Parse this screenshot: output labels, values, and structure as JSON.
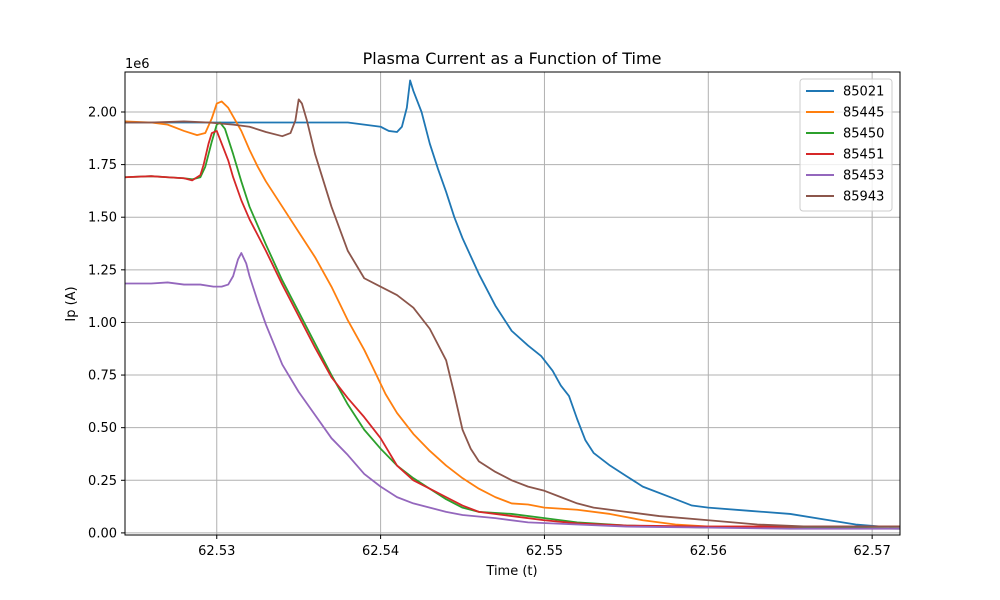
{
  "chart_data": {
    "type": "line",
    "title": "Plasma Current as a Function of Time",
    "xlabel": "Time (t)",
    "ylabel": "Ip (A)",
    "y_offset_label": "1e6",
    "xlim": [
      62.5244,
      62.5717
    ],
    "ylim": [
      -0.01,
      2.19
    ],
    "x_ticks": [
      62.53,
      62.54,
      62.55,
      62.56,
      62.57
    ],
    "x_tick_labels": [
      "62.53",
      "62.54",
      "62.55",
      "62.56",
      "62.57"
    ],
    "y_ticks": [
      0.0,
      0.25,
      0.5,
      0.75,
      1.0,
      1.25,
      1.5,
      1.75,
      2.0
    ],
    "y_tick_labels": [
      "0.00",
      "0.25",
      "0.50",
      "0.75",
      "1.00",
      "1.25",
      "1.50",
      "1.75",
      "2.00"
    ],
    "grid": true,
    "legend_position": "top-right",
    "series": [
      {
        "name": "85021",
        "color": "#1f77b4",
        "points": [
          [
            62.5244,
            1.95
          ],
          [
            62.527,
            1.95
          ],
          [
            62.53,
            1.95
          ],
          [
            62.533,
            1.95
          ],
          [
            62.536,
            1.95
          ],
          [
            62.538,
            1.95
          ],
          [
            62.54,
            1.93
          ],
          [
            62.5405,
            1.91
          ],
          [
            62.541,
            1.905
          ],
          [
            62.5413,
            1.93
          ],
          [
            62.5416,
            2.02
          ],
          [
            62.5418,
            2.15
          ],
          [
            62.542,
            2.1
          ],
          [
            62.5425,
            2.0
          ],
          [
            62.543,
            1.85
          ],
          [
            62.5435,
            1.73
          ],
          [
            62.544,
            1.62
          ],
          [
            62.5445,
            1.5
          ],
          [
            62.545,
            1.4
          ],
          [
            62.546,
            1.23
          ],
          [
            62.547,
            1.08
          ],
          [
            62.548,
            0.96
          ],
          [
            62.549,
            0.89
          ],
          [
            62.5498,
            0.84
          ],
          [
            62.5505,
            0.77
          ],
          [
            62.551,
            0.7
          ],
          [
            62.5515,
            0.65
          ],
          [
            62.552,
            0.54
          ],
          [
            62.5525,
            0.44
          ],
          [
            62.553,
            0.38
          ],
          [
            62.554,
            0.32
          ],
          [
            62.555,
            0.27
          ],
          [
            62.556,
            0.22
          ],
          [
            62.558,
            0.16
          ],
          [
            62.559,
            0.13
          ],
          [
            62.56,
            0.12
          ],
          [
            62.5625,
            0.105
          ],
          [
            62.565,
            0.09
          ],
          [
            62.567,
            0.065
          ],
          [
            62.569,
            0.04
          ],
          [
            62.5705,
            0.03
          ],
          [
            62.5717,
            0.03
          ]
        ]
      },
      {
        "name": "85445",
        "color": "#ff7f0e",
        "points": [
          [
            62.5244,
            1.955
          ],
          [
            62.526,
            1.95
          ],
          [
            62.527,
            1.94
          ],
          [
            62.528,
            1.91
          ],
          [
            62.5288,
            1.89
          ],
          [
            62.5293,
            1.9
          ],
          [
            62.5297,
            1.97
          ],
          [
            62.53,
            2.04
          ],
          [
            62.5303,
            2.05
          ],
          [
            62.5307,
            2.02
          ],
          [
            62.5315,
            1.91
          ],
          [
            62.532,
            1.82
          ],
          [
            62.5325,
            1.74
          ],
          [
            62.533,
            1.67
          ],
          [
            62.534,
            1.55
          ],
          [
            62.535,
            1.43
          ],
          [
            62.536,
            1.31
          ],
          [
            62.537,
            1.17
          ],
          [
            62.538,
            1.01
          ],
          [
            62.539,
            0.87
          ],
          [
            62.5395,
            0.79
          ],
          [
            62.5403,
            0.66
          ],
          [
            62.541,
            0.57
          ],
          [
            62.542,
            0.47
          ],
          [
            62.543,
            0.39
          ],
          [
            62.544,
            0.32
          ],
          [
            62.545,
            0.26
          ],
          [
            62.546,
            0.21
          ],
          [
            62.547,
            0.17
          ],
          [
            62.548,
            0.14
          ],
          [
            62.549,
            0.135
          ],
          [
            62.55,
            0.12
          ],
          [
            62.552,
            0.11
          ],
          [
            62.554,
            0.09
          ],
          [
            62.556,
            0.06
          ],
          [
            62.558,
            0.04
          ],
          [
            62.56,
            0.03
          ],
          [
            62.565,
            0.03
          ],
          [
            62.5717,
            0.03
          ]
        ]
      },
      {
        "name": "85450",
        "color": "#2ca02c",
        "points": [
          [
            62.5244,
            1.69
          ],
          [
            62.526,
            1.695
          ],
          [
            62.527,
            1.69
          ],
          [
            62.528,
            1.685
          ],
          [
            62.5285,
            1.68
          ],
          [
            62.529,
            1.69
          ],
          [
            62.5293,
            1.74
          ],
          [
            62.5297,
            1.86
          ],
          [
            62.53,
            1.94
          ],
          [
            62.5302,
            1.95
          ],
          [
            62.5305,
            1.92
          ],
          [
            62.531,
            1.8
          ],
          [
            62.5315,
            1.67
          ],
          [
            62.532,
            1.55
          ],
          [
            62.533,
            1.37
          ],
          [
            62.534,
            1.2
          ],
          [
            62.535,
            1.05
          ],
          [
            62.536,
            0.9
          ],
          [
            62.537,
            0.75
          ],
          [
            62.538,
            0.61
          ],
          [
            62.539,
            0.49
          ],
          [
            62.54,
            0.4
          ],
          [
            62.541,
            0.32
          ],
          [
            62.542,
            0.26
          ],
          [
            62.543,
            0.21
          ],
          [
            62.544,
            0.16
          ],
          [
            62.545,
            0.12
          ],
          [
            62.546,
            0.1
          ],
          [
            62.548,
            0.09
          ],
          [
            62.55,
            0.07
          ],
          [
            62.552,
            0.05
          ],
          [
            62.555,
            0.035
          ],
          [
            62.56,
            0.025
          ],
          [
            62.565,
            0.025
          ],
          [
            62.5717,
            0.02
          ]
        ]
      },
      {
        "name": "85451",
        "color": "#d62728",
        "points": [
          [
            62.5244,
            1.69
          ],
          [
            62.526,
            1.695
          ],
          [
            62.527,
            1.69
          ],
          [
            62.528,
            1.685
          ],
          [
            62.5285,
            1.675
          ],
          [
            62.529,
            1.7
          ],
          [
            62.5292,
            1.75
          ],
          [
            62.5295,
            1.85
          ],
          [
            62.5297,
            1.9
          ],
          [
            62.53,
            1.91
          ],
          [
            62.5302,
            1.87
          ],
          [
            62.5307,
            1.77
          ],
          [
            62.531,
            1.69
          ],
          [
            62.5315,
            1.58
          ],
          [
            62.532,
            1.49
          ],
          [
            62.533,
            1.34
          ],
          [
            62.534,
            1.18
          ],
          [
            62.535,
            1.03
          ],
          [
            62.536,
            0.88
          ],
          [
            62.537,
            0.74
          ],
          [
            62.538,
            0.64
          ],
          [
            62.539,
            0.55
          ],
          [
            62.54,
            0.45
          ],
          [
            62.541,
            0.32
          ],
          [
            62.542,
            0.25
          ],
          [
            62.543,
            0.21
          ],
          [
            62.544,
            0.17
          ],
          [
            62.545,
            0.13
          ],
          [
            62.546,
            0.1
          ],
          [
            62.548,
            0.08
          ],
          [
            62.55,
            0.06
          ],
          [
            62.552,
            0.045
          ],
          [
            62.555,
            0.035
          ],
          [
            62.56,
            0.03
          ],
          [
            62.5717,
            0.03
          ]
        ]
      },
      {
        "name": "85453",
        "color": "#9467bd",
        "points": [
          [
            62.5244,
            1.185
          ],
          [
            62.526,
            1.185
          ],
          [
            62.527,
            1.19
          ],
          [
            62.528,
            1.18
          ],
          [
            62.529,
            1.18
          ],
          [
            62.5298,
            1.17
          ],
          [
            62.5303,
            1.17
          ],
          [
            62.5307,
            1.18
          ],
          [
            62.531,
            1.22
          ],
          [
            62.5313,
            1.3
          ],
          [
            62.5315,
            1.33
          ],
          [
            62.5318,
            1.28
          ],
          [
            62.532,
            1.22
          ],
          [
            62.5325,
            1.1
          ],
          [
            62.533,
            0.99
          ],
          [
            62.534,
            0.8
          ],
          [
            62.535,
            0.67
          ],
          [
            62.536,
            0.56
          ],
          [
            62.537,
            0.45
          ],
          [
            62.538,
            0.37
          ],
          [
            62.539,
            0.28
          ],
          [
            62.54,
            0.22
          ],
          [
            62.541,
            0.17
          ],
          [
            62.542,
            0.14
          ],
          [
            62.543,
            0.12
          ],
          [
            62.544,
            0.1
          ],
          [
            62.545,
            0.085
          ],
          [
            62.547,
            0.07
          ],
          [
            62.549,
            0.05
          ],
          [
            62.552,
            0.04
          ],
          [
            62.555,
            0.03
          ],
          [
            62.56,
            0.025
          ],
          [
            62.565,
            0.02
          ],
          [
            62.5717,
            0.02
          ]
        ]
      },
      {
        "name": "85943",
        "color": "#8c564b",
        "points": [
          [
            62.5244,
            1.95
          ],
          [
            62.526,
            1.95
          ],
          [
            62.528,
            1.955
          ],
          [
            62.5295,
            1.95
          ],
          [
            62.531,
            1.94
          ],
          [
            62.532,
            1.93
          ],
          [
            62.533,
            1.905
          ],
          [
            62.534,
            1.885
          ],
          [
            62.5345,
            1.9
          ],
          [
            62.5348,
            1.96
          ],
          [
            62.535,
            2.06
          ],
          [
            62.5352,
            2.04
          ],
          [
            62.5355,
            1.96
          ],
          [
            62.536,
            1.8
          ],
          [
            62.537,
            1.55
          ],
          [
            62.538,
            1.34
          ],
          [
            62.539,
            1.21
          ],
          [
            62.54,
            1.17
          ],
          [
            62.541,
            1.13
          ],
          [
            62.542,
            1.07
          ],
          [
            62.543,
            0.97
          ],
          [
            62.544,
            0.82
          ],
          [
            62.5445,
            0.66
          ],
          [
            62.545,
            0.49
          ],
          [
            62.5455,
            0.4
          ],
          [
            62.546,
            0.34
          ],
          [
            62.547,
            0.29
          ],
          [
            62.548,
            0.25
          ],
          [
            62.549,
            0.22
          ],
          [
            62.55,
            0.2
          ],
          [
            62.551,
            0.17
          ],
          [
            62.552,
            0.14
          ],
          [
            62.553,
            0.12
          ],
          [
            62.555,
            0.1
          ],
          [
            62.557,
            0.08
          ],
          [
            62.56,
            0.06
          ],
          [
            62.563,
            0.04
          ],
          [
            62.566,
            0.03
          ],
          [
            62.5717,
            0.03
          ]
        ]
      }
    ]
  }
}
